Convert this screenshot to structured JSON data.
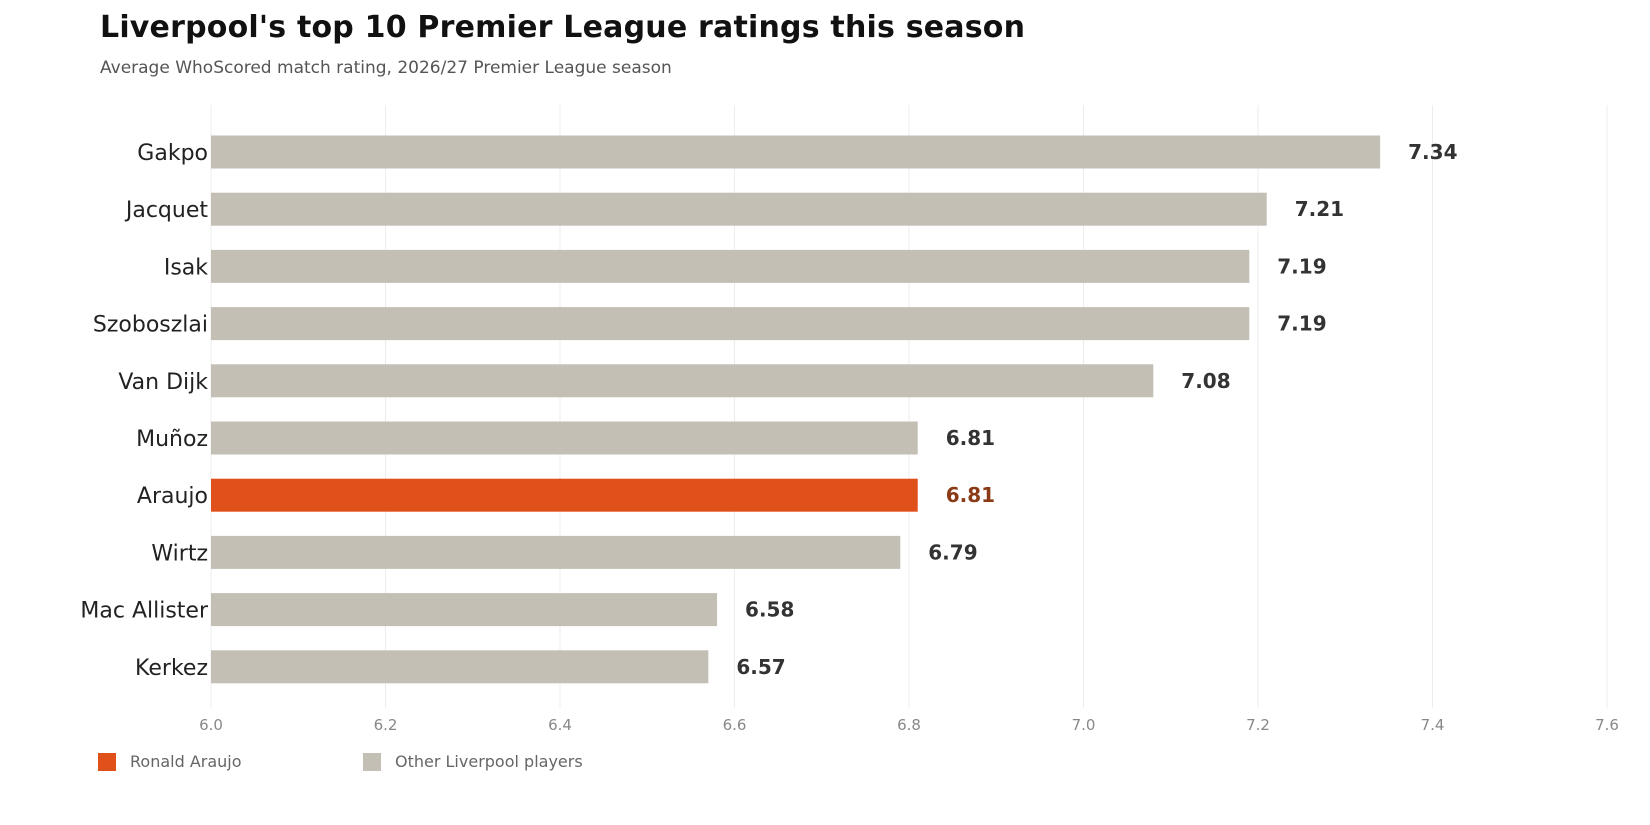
{
  "title": "Liverpool's top 10 Premier League ratings this season",
  "subtitle": "Average WhoScored match rating, 2026/27 Premier League season",
  "colors": {
    "highlight": "#e0501a",
    "other": "#c4bfb5",
    "grid": "#ececec"
  },
  "legend": {
    "highlight_label": "Ronald Araujo",
    "other_label": "Other Liverpool players"
  },
  "chart_data": {
    "type": "bar",
    "orientation": "horizontal",
    "title": "Liverpool's top 10 Premier League ratings this season",
    "subtitle": "Average WhoScored match rating, 2026/27 Premier League season",
    "categories": [
      "Gakpo",
      "Jacquet",
      "Isak",
      "Szoboszlai",
      "Van Dijk",
      "Muñoz",
      "Araujo",
      "Wirtz",
      "Mac Allister",
      "Kerkez"
    ],
    "values": [
      7.34,
      7.21,
      7.19,
      7.19,
      7.08,
      6.81,
      6.81,
      6.79,
      6.58,
      6.57
    ],
    "value_labels": [
      "7.34",
      "7.21",
      "7.19",
      "7.19",
      "7.08",
      "6.81",
      "6.81",
      "6.79",
      "6.58",
      "6.57"
    ],
    "highlight": [
      false,
      false,
      false,
      false,
      false,
      false,
      true,
      false,
      false,
      false
    ],
    "xlim": [
      6.0,
      7.6
    ],
    "xticks": [
      6.0,
      6.2,
      6.4,
      6.6,
      6.8,
      7.0,
      7.2,
      7.4,
      7.6
    ],
    "xtick_labels": [
      "6.0",
      "6.2",
      "6.4",
      "6.6",
      "6.8",
      "7.0",
      "7.2",
      "7.4",
      "7.6"
    ],
    "grid": "vertical",
    "legend_position": "bottom-left"
  }
}
